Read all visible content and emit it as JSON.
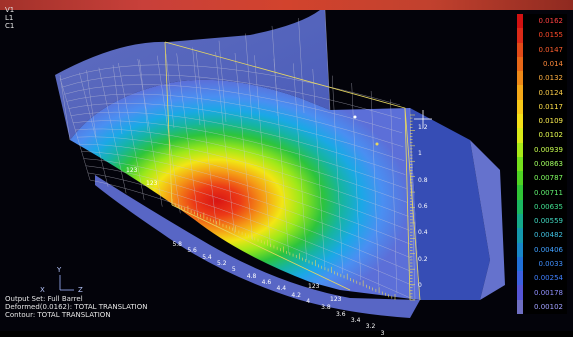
{
  "window_header": {
    "view_lines": [
      "V1",
      "L1",
      "C1"
    ]
  },
  "bottom_info": {
    "output_set": "Output Set: Full Barrel",
    "deformed": "Deformed(0.0162): TOTAL TRANSLATION",
    "contour": "Contour: TOTAL TRANSLATION"
  },
  "axis_triad": {
    "y_label": "Y",
    "x_label": "X",
    "z_label": "Z"
  },
  "legend": {
    "values": [
      "0.0162",
      "0.0155",
      "0.0147",
      "0.014",
      "0.0132",
      "0.0124",
      "0.0117",
      "0.0109",
      "0.0102",
      "0.00939",
      "0.00863",
      "0.00787",
      "0.00711",
      "0.00635",
      "0.00559",
      "0.00482",
      "0.00406",
      "0.0033",
      "0.00254",
      "0.00178",
      "0.00102"
    ],
    "colors": [
      "#d21111",
      "#db2a18",
      "#e24a18",
      "#e86818",
      "#ee8818",
      "#f5a818",
      "#f8c818",
      "#f5e018",
      "#d9ea18",
      "#a8ea18",
      "#74df1c",
      "#4fd223",
      "#30c436",
      "#1ab761",
      "#14a98a",
      "#1498ad",
      "#1886c8",
      "#2070d8",
      "#3d60e0",
      "#5555d6",
      "#6f6fc2"
    ],
    "text_colors": [
      "#ff4040",
      "#ff4a2a",
      "#ff5f2e",
      "#ff8a3a",
      "#ffb040",
      "#ffd04a",
      "#ffe04a",
      "#fff050",
      "#e8ff50",
      "#c8ff50",
      "#a0ff60",
      "#80ff60",
      "#60f070",
      "#40e090",
      "#40d8c0",
      "#40c0e0",
      "#40a0ff",
      "#4090ff",
      "#4080ff",
      "#9090ff",
      "#a0a0ff"
    ]
  },
  "scale_a": {
    "ticks": [
      "5.8",
      "5.6",
      "5.4",
      "5.2",
      "5",
      "4.8",
      "4.6",
      "4.4",
      "4.2",
      "4",
      "3.8",
      "3.6",
      "3.4",
      "3.2",
      "3"
    ]
  },
  "scale_b": {
    "ticks": [
      "1.2",
      "1",
      "0.8",
      "0.6",
      "0.4",
      "0.2",
      "0"
    ]
  },
  "mesh_labels": [
    "123",
    "123",
    "123",
    "123"
  ],
  "colors": {
    "background": "#03030a",
    "mesh_line": "#c8c8d8",
    "frame_line": "#e8d860"
  }
}
